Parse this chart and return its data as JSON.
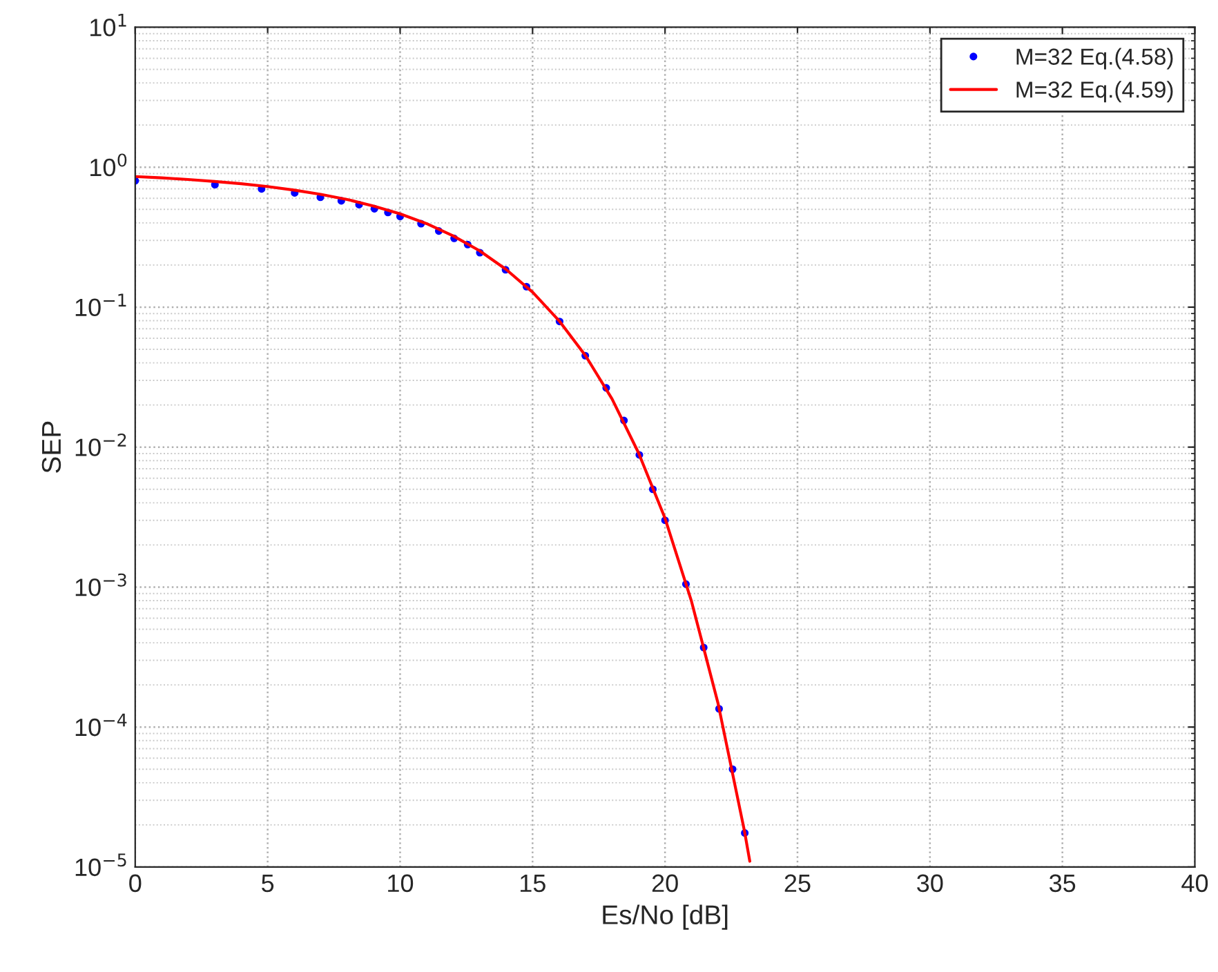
{
  "chart_data": {
    "type": "line",
    "xlabel": "Es/No [dB]",
    "ylabel": "SEP",
    "log": "y",
    "grid": true,
    "legend": "top right",
    "xlim": [
      0,
      40
    ],
    "xticks": [
      0,
      5,
      10,
      15,
      20,
      25,
      30,
      35,
      40
    ],
    "ylim": [
      1e-05,
      10
    ],
    "yticks": [
      {
        "value": 1e-05,
        "label": "10$^{−5}$"
      },
      {
        "value": 0.0001,
        "label": "10$^{−4}$"
      },
      {
        "value": 0.001,
        "label": "10$^{−3}$"
      },
      {
        "value": 0.01,
        "label": "10$^{−2}$"
      },
      {
        "value": 0.1,
        "label": "10$^{−1}$"
      },
      {
        "value": 1,
        "label": "10$^{0}$"
      },
      {
        "value": 10,
        "label": "10$^{1}$"
      }
    ],
    "series": [
      {
        "name": "M=32 Eq.(4.58)",
        "type": "scatter",
        "marker": "circle",
        "color": "#0000ff",
        "x": [
          0,
          3.01,
          4.77,
          6.02,
          6.99,
          7.78,
          8.45,
          9.03,
          9.54,
          10,
          10.79,
          11.46,
          12.04,
          12.55,
          13.01,
          13.98,
          14.77,
          16.02,
          16.99,
          17.78,
          18.45,
          19.03,
          19.54,
          20,
          20.79,
          21.46,
          22.04,
          22.55,
          23.01
        ],
        "values": [
          0.8,
          0.75,
          0.7,
          0.655,
          0.61,
          0.575,
          0.54,
          0.505,
          0.475,
          0.445,
          0.395,
          0.35,
          0.31,
          0.28,
          0.245,
          0.185,
          0.14,
          0.079,
          0.045,
          0.0265,
          0.0155,
          0.0088,
          0.005,
          0.003,
          0.00105,
          0.00037,
          0.000135,
          5e-05,
          1.75e-05
        ]
      },
      {
        "name": "M=32 Eq.(4.59)",
        "line_style": "solid",
        "color": "#ff0000",
        "x": [
          0,
          1,
          2,
          3,
          4,
          5,
          6,
          7,
          8,
          9,
          10,
          11,
          12,
          13,
          14,
          15,
          16,
          17,
          18,
          19,
          20,
          21,
          22,
          23,
          23.2
        ],
        "values": [
          0.857,
          0.839,
          0.817,
          0.791,
          0.762,
          0.727,
          0.686,
          0.64,
          0.588,
          0.528,
          0.464,
          0.395,
          0.323,
          0.253,
          0.186,
          0.128,
          0.08,
          0.045,
          0.0221,
          0.0091,
          0.0031,
          0.00079,
          0.000148,
          1.8e-05,
          1.1e-05
        ]
      }
    ]
  }
}
